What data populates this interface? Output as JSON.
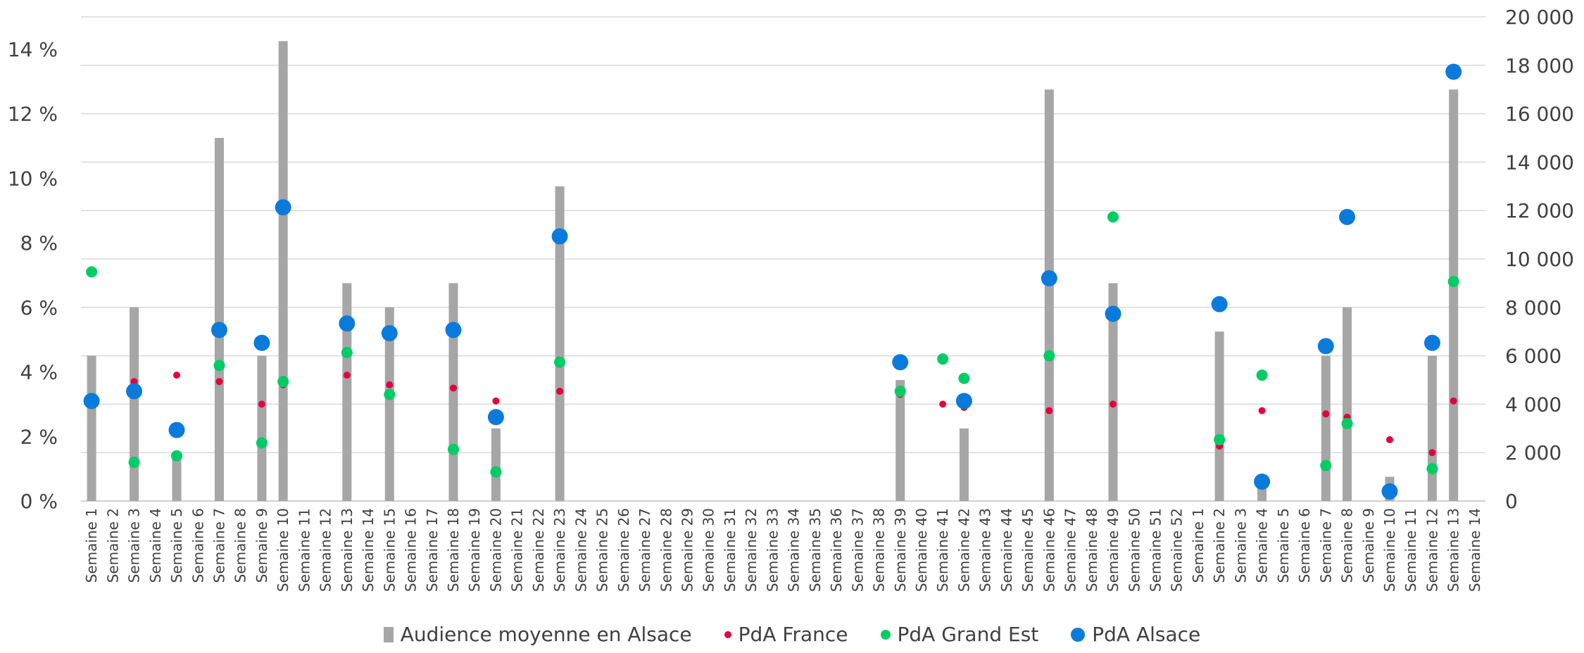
{
  "chart_data": {
    "type": "bar",
    "categories": [
      "Semaine 1",
      "Semaine 2",
      "Semaine 3",
      "Semaine 4",
      "Semaine 5",
      "Semaine 6",
      "Semaine 7",
      "Semaine 8",
      "Semaine 9",
      "Semaine 10",
      "Semaine 11",
      "Semaine 12",
      "Semaine 13",
      "Semaine 14",
      "Semaine 15",
      "Semaine 16",
      "Semaine 17",
      "Semaine 18",
      "Semaine 19",
      "Semaine 20",
      "Semaine 21",
      "Semaine 22",
      "Semaine 23",
      "Semaine 24",
      "Semaine 25",
      "Semaine 26",
      "Semaine 27",
      "Semaine 28",
      "Semaine 29",
      "Semaine 30",
      "Semaine 31",
      "Semaine 32",
      "Semaine 33",
      "Semaine 34",
      "Semaine 35",
      "Semaine 36",
      "Semaine 37",
      "Semaine 38",
      "Semaine 39",
      "Semaine 40",
      "Semaine 41",
      "Semaine 42",
      "Semaine 43",
      "Semaine 44",
      "Semaine 45",
      "Semaine 46",
      "Semaine 47",
      "Semaine 48",
      "Semaine 49",
      "Semaine 50",
      "Semaine 51",
      "Semaine 52",
      "Semaine 1",
      "Semaine 2",
      "Semaine 3",
      "Semaine 4",
      "Semaine 5",
      "Semaine 6",
      "Semaine 7",
      "Semaine 8",
      "Semaine 9",
      "Semaine 10",
      "Semaine 11",
      "Semaine 12",
      "Semaine 13",
      "Semaine 14"
    ],
    "x_tick_labels": [
      "Semaine 1",
      "Semaine 2",
      "Semaine 3",
      "Semaine 4",
      "Semaine 5",
      "Semaine 6",
      "Semaine 7",
      "Semaine 8",
      "Semaine 9",
      "Semaine 10",
      "Semaine 11",
      "Semaine 12",
      "Semaine 13",
      "Semaine 14",
      "Semaine 15",
      "Semaine 16",
      "Semaine 17",
      "Semaine 18",
      "Semaine 19",
      "Semaine 20",
      "Semaine 21",
      "Semaine 22",
      "Semaine 23",
      "Semaine 24",
      "Semaine 25",
      "Semaine 26",
      "Semaine 27",
      "Semaine 28",
      "Semaine 29",
      "Semaine 30",
      "Semaine 31",
      "Semaine 32",
      "Semaine 33",
      "Semaine 34",
      "Semaine 35",
      "Semaine 36",
      "Semaine 37",
      "Semaine 38",
      "Semaine 39",
      "Semaine 40",
      "Semaine 41",
      "Semaine 42",
      "Semaine 43",
      "Semaine 44",
      "Semaine 45",
      "Semaine 46",
      "Semaine 47",
      "Semaine 48",
      "Semaine 49",
      "Semaine 50",
      "Semaine 51",
      "Semaine 52",
      "Semaine 1",
      "Semaine 2",
      "Semaine 3",
      "Semaine 4",
      "Semaine 5",
      "Semaine 6",
      "Semaine 7",
      "Semaine 8",
      "Semaine 9",
      "Semaine 10",
      "Semaine 11",
      "Semaine 12",
      "Semaine 13",
      "Semaine 14"
    ],
    "y_left": {
      "ticks": [
        "0 %",
        "2 %",
        "4 %",
        "6 %",
        "8 %",
        "10 %",
        "12 %",
        "14 %"
      ],
      "range": [
        0,
        15
      ]
    },
    "y_right": {
      "ticks": [
        "0",
        "2 000",
        "4 000",
        "6 000",
        "8 000",
        "10 000",
        "12 000",
        "14 000",
        "16 000",
        "18 000",
        "20 000"
      ],
      "range": [
        0,
        20000
      ]
    },
    "legend": "bottom-center",
    "grid": true,
    "series": [
      {
        "name": "Audience moyenne en Alsace",
        "type": "bar",
        "axis": "right",
        "color": "#a6a6a6",
        "values": [
          6000,
          null,
          8000,
          null,
          2000,
          null,
          15000,
          null,
          6000,
          19000,
          null,
          null,
          9000,
          null,
          8000,
          null,
          null,
          9000,
          null,
          3000,
          null,
          null,
          13000,
          null,
          null,
          null,
          null,
          null,
          null,
          null,
          null,
          null,
          null,
          null,
          null,
          null,
          null,
          null,
          5000,
          null,
          null,
          3000,
          null,
          null,
          null,
          17000,
          null,
          null,
          9000,
          null,
          null,
          null,
          null,
          7000,
          null,
          1000,
          null,
          null,
          6000,
          8000,
          null,
          1000,
          null,
          6000,
          17000,
          null
        ]
      },
      {
        "name": "PdA France",
        "type": "scatter",
        "axis": "left",
        "color": "#e4003a",
        "values": [
          3.2,
          null,
          3.7,
          null,
          3.9,
          null,
          3.7,
          null,
          3.0,
          3.6,
          null,
          null,
          3.9,
          null,
          3.6,
          null,
          null,
          3.5,
          null,
          3.1,
          null,
          null,
          3.4,
          null,
          null,
          null,
          null,
          null,
          null,
          null,
          null,
          null,
          null,
          null,
          null,
          null,
          null,
          null,
          3.3,
          null,
          3.0,
          2.9,
          null,
          null,
          null,
          2.8,
          null,
          null,
          3.0,
          null,
          null,
          null,
          null,
          1.7,
          null,
          2.8,
          null,
          null,
          2.7,
          2.6,
          null,
          1.9,
          null,
          1.5,
          3.1,
          null
        ]
      },
      {
        "name": "PdA Grand Est",
        "type": "scatter",
        "axis": "left",
        "color": "#00cc66",
        "values": [
          7.1,
          null,
          1.2,
          null,
          1.4,
          null,
          4.2,
          null,
          1.8,
          3.7,
          null,
          null,
          4.6,
          null,
          3.3,
          null,
          null,
          1.6,
          null,
          0.9,
          null,
          null,
          4.3,
          null,
          null,
          null,
          null,
          null,
          null,
          null,
          null,
          null,
          null,
          null,
          null,
          null,
          null,
          null,
          3.4,
          null,
          4.4,
          3.8,
          null,
          null,
          null,
          4.5,
          null,
          null,
          8.8,
          null,
          null,
          null,
          null,
          1.9,
          null,
          3.9,
          null,
          null,
          1.1,
          2.4,
          null,
          null,
          null,
          1.0,
          6.8,
          null
        ]
      },
      {
        "name": "PdA Alsace",
        "type": "scatter",
        "axis": "left",
        "color": "#0a7bdc",
        "values": [
          3.1,
          null,
          3.4,
          null,
          2.2,
          null,
          5.3,
          null,
          4.9,
          9.1,
          null,
          null,
          5.5,
          null,
          5.2,
          null,
          null,
          5.3,
          null,
          2.6,
          null,
          null,
          8.2,
          null,
          null,
          null,
          null,
          null,
          null,
          null,
          null,
          null,
          null,
          null,
          null,
          null,
          null,
          null,
          4.3,
          null,
          null,
          3.1,
          null,
          null,
          null,
          6.9,
          null,
          null,
          5.8,
          null,
          null,
          null,
          null,
          6.1,
          null,
          0.6,
          null,
          null,
          4.8,
          8.8,
          null,
          0.3,
          null,
          4.9,
          13.3,
          null
        ]
      }
    ]
  }
}
